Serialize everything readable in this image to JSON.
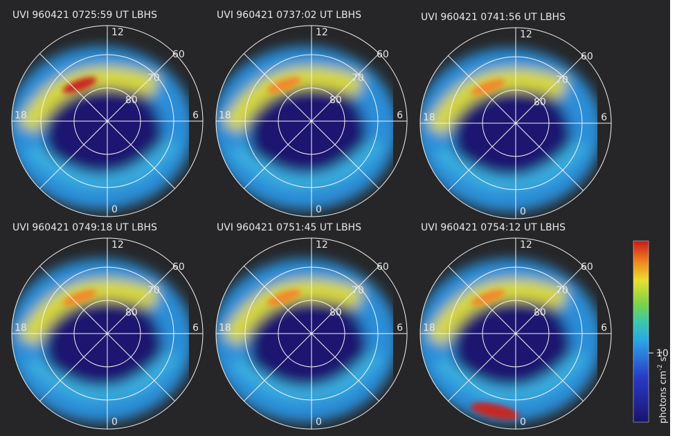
{
  "panels": [
    {
      "title": "UVI 960421 0725:59 UT LBHS"
    },
    {
      "title": "UVI 960421 0737:02 UT LBHS"
    },
    {
      "title": "UVI 960421 0741:56 UT LBHS"
    },
    {
      "title": "UVI 960421 0749:18 UT LBHS"
    },
    {
      "title": "UVI 960421 0751:45 UT LBHS"
    },
    {
      "title": "UVI 960421 0754:12 UT LBHS"
    }
  ],
  "polar_labels": {
    "noon": "12",
    "dusk": "18",
    "dawn": "6",
    "midnight": "0",
    "lat60": "60",
    "lat70": "70",
    "lat80": "80"
  },
  "colorbar": {
    "label": [
      "photons cm",
      "-2",
      " s",
      "-1"
    ],
    "tick": "10"
  }
}
